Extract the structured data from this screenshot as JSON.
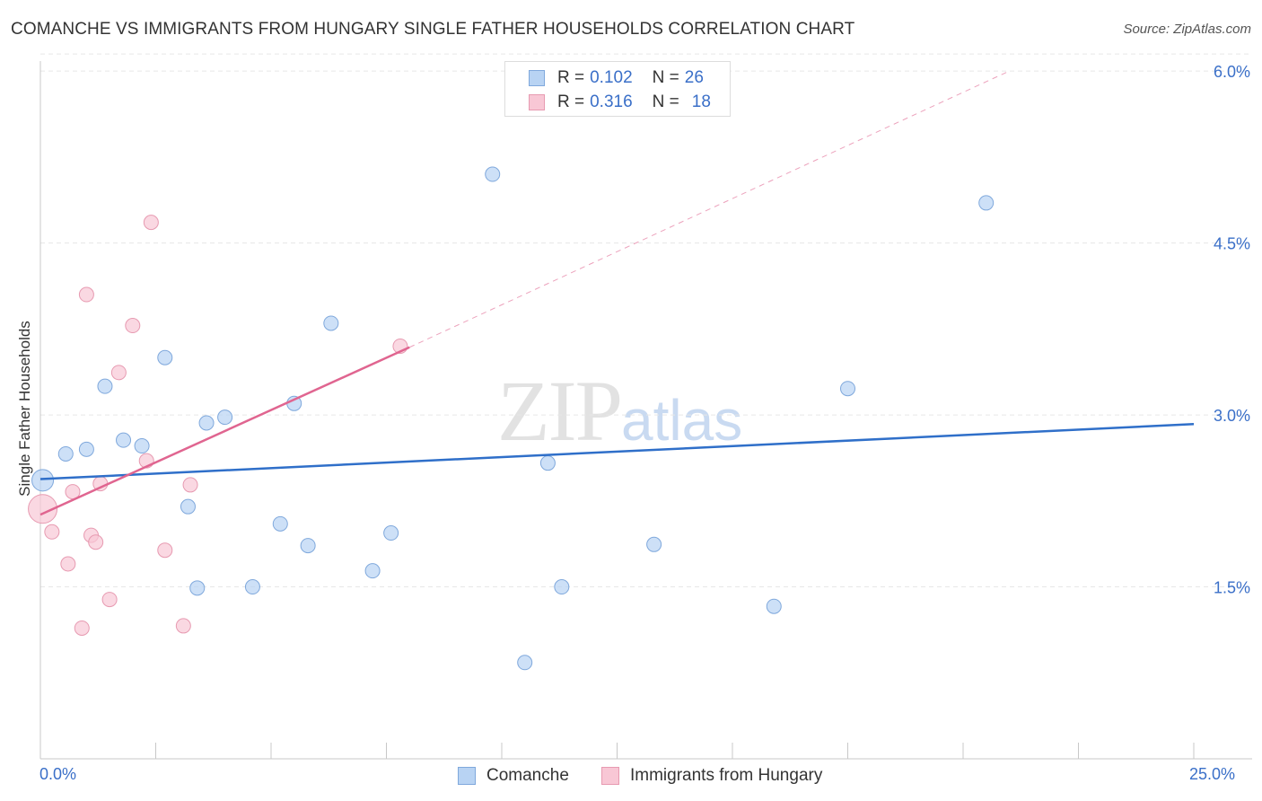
{
  "header": {
    "title": "COMANCHE VS IMMIGRANTS FROM HUNGARY SINGLE FATHER HOUSEHOLDS CORRELATION CHART",
    "source": "Source: ZipAtlas.com"
  },
  "watermark": {
    "zip": "ZIP",
    "atlas": "atlas"
  },
  "legend": {
    "rows": [
      {
        "r_label": "R =",
        "r_value": "0.102",
        "n_label": "N =",
        "n_value": "26"
      },
      {
        "r_label": "R =",
        "r_value": "0.316",
        "n_label": "N =",
        "n_value": "18"
      }
    ]
  },
  "colors": {
    "comanche_fill": "#b8d3f3",
    "comanche_stroke": "#7fa8dc",
    "comanche_line": "#2f6fc9",
    "hungary_fill": "#f8c7d5",
    "hungary_stroke": "#e79ab1",
    "hungary_line": "#e06590",
    "axis_text": "#3a6fc8",
    "grid": "#e6e6e6"
  },
  "chart_data": {
    "type": "scatter",
    "title": "COMANCHE VS IMMIGRANTS FROM HUNGARY SINGLE FATHER HOUSEHOLDS CORRELATION CHART",
    "xlabel": "",
    "ylabel": "Single Father Households",
    "xlim": [
      0,
      25
    ],
    "ylim": [
      0,
      6.15
    ],
    "x_tick_labels": [
      "0.0%",
      "25.0%"
    ],
    "y_ticks": [
      1.5,
      3.0,
      4.5,
      6.0
    ],
    "y_tick_labels": [
      "1.5%",
      "3.0%",
      "4.5%",
      "6.0%"
    ],
    "grid": true,
    "legend_position": "top-center",
    "series": [
      {
        "name": "Comanche",
        "R": 0.102,
        "N": 26,
        "points": [
          [
            0.05,
            2.43
          ],
          [
            0.55,
            2.66
          ],
          [
            1.0,
            2.7
          ],
          [
            1.4,
            3.25
          ],
          [
            1.8,
            2.78
          ],
          [
            2.2,
            2.73
          ],
          [
            2.7,
            3.5
          ],
          [
            3.2,
            2.2
          ],
          [
            3.4,
            1.49
          ],
          [
            3.6,
            2.93
          ],
          [
            4.0,
            2.98
          ],
          [
            4.6,
            1.5
          ],
          [
            5.2,
            2.05
          ],
          [
            5.5,
            3.1
          ],
          [
            5.8,
            1.86
          ],
          [
            6.3,
            3.8
          ],
          [
            7.2,
            1.64
          ],
          [
            7.6,
            1.97
          ],
          [
            9.8,
            5.1
          ],
          [
            10.5,
            0.84
          ],
          [
            11.0,
            2.58
          ],
          [
            11.3,
            1.5
          ],
          [
            13.3,
            1.87
          ],
          [
            15.9,
            1.33
          ],
          [
            17.5,
            3.23
          ],
          [
            20.5,
            4.85
          ]
        ],
        "trend": {
          "x": [
            0,
            25
          ],
          "y": [
            2.44,
            2.92
          ]
        }
      },
      {
        "name": "Immigrants from Hungary",
        "R": 0.316,
        "N": 18,
        "points": [
          [
            0.05,
            2.18
          ],
          [
            0.25,
            1.98
          ],
          [
            0.6,
            1.7
          ],
          [
            0.7,
            2.33
          ],
          [
            0.9,
            1.14
          ],
          [
            1.0,
            4.05
          ],
          [
            1.1,
            1.95
          ],
          [
            1.2,
            1.89
          ],
          [
            1.3,
            2.4
          ],
          [
            1.5,
            1.39
          ],
          [
            1.7,
            3.37
          ],
          [
            2.0,
            3.78
          ],
          [
            2.3,
            2.6
          ],
          [
            2.4,
            4.68
          ],
          [
            2.7,
            1.82
          ],
          [
            3.1,
            1.16
          ],
          [
            3.25,
            2.39
          ],
          [
            7.8,
            3.6
          ]
        ],
        "trend": {
          "x": [
            0,
            8.0
          ],
          "y": [
            2.13,
            3.59
          ]
        },
        "trend_extension": {
          "x": [
            8.0,
            21.0
          ],
          "y": [
            3.59,
            6.0
          ]
        }
      }
    ]
  },
  "bottom_legend": {
    "items": [
      {
        "label": "Comanche"
      },
      {
        "label": "Immigrants from Hungary"
      }
    ]
  }
}
